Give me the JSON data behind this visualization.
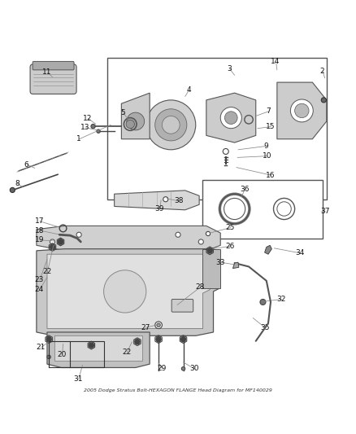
{
  "title": "2005 Dodge Stratus Bolt-HEXAGON FLANGE Head Diagram for MF140029",
  "bg_color": "#ffffff",
  "figsize": [
    4.38,
    5.33
  ],
  "dpi": 100
}
